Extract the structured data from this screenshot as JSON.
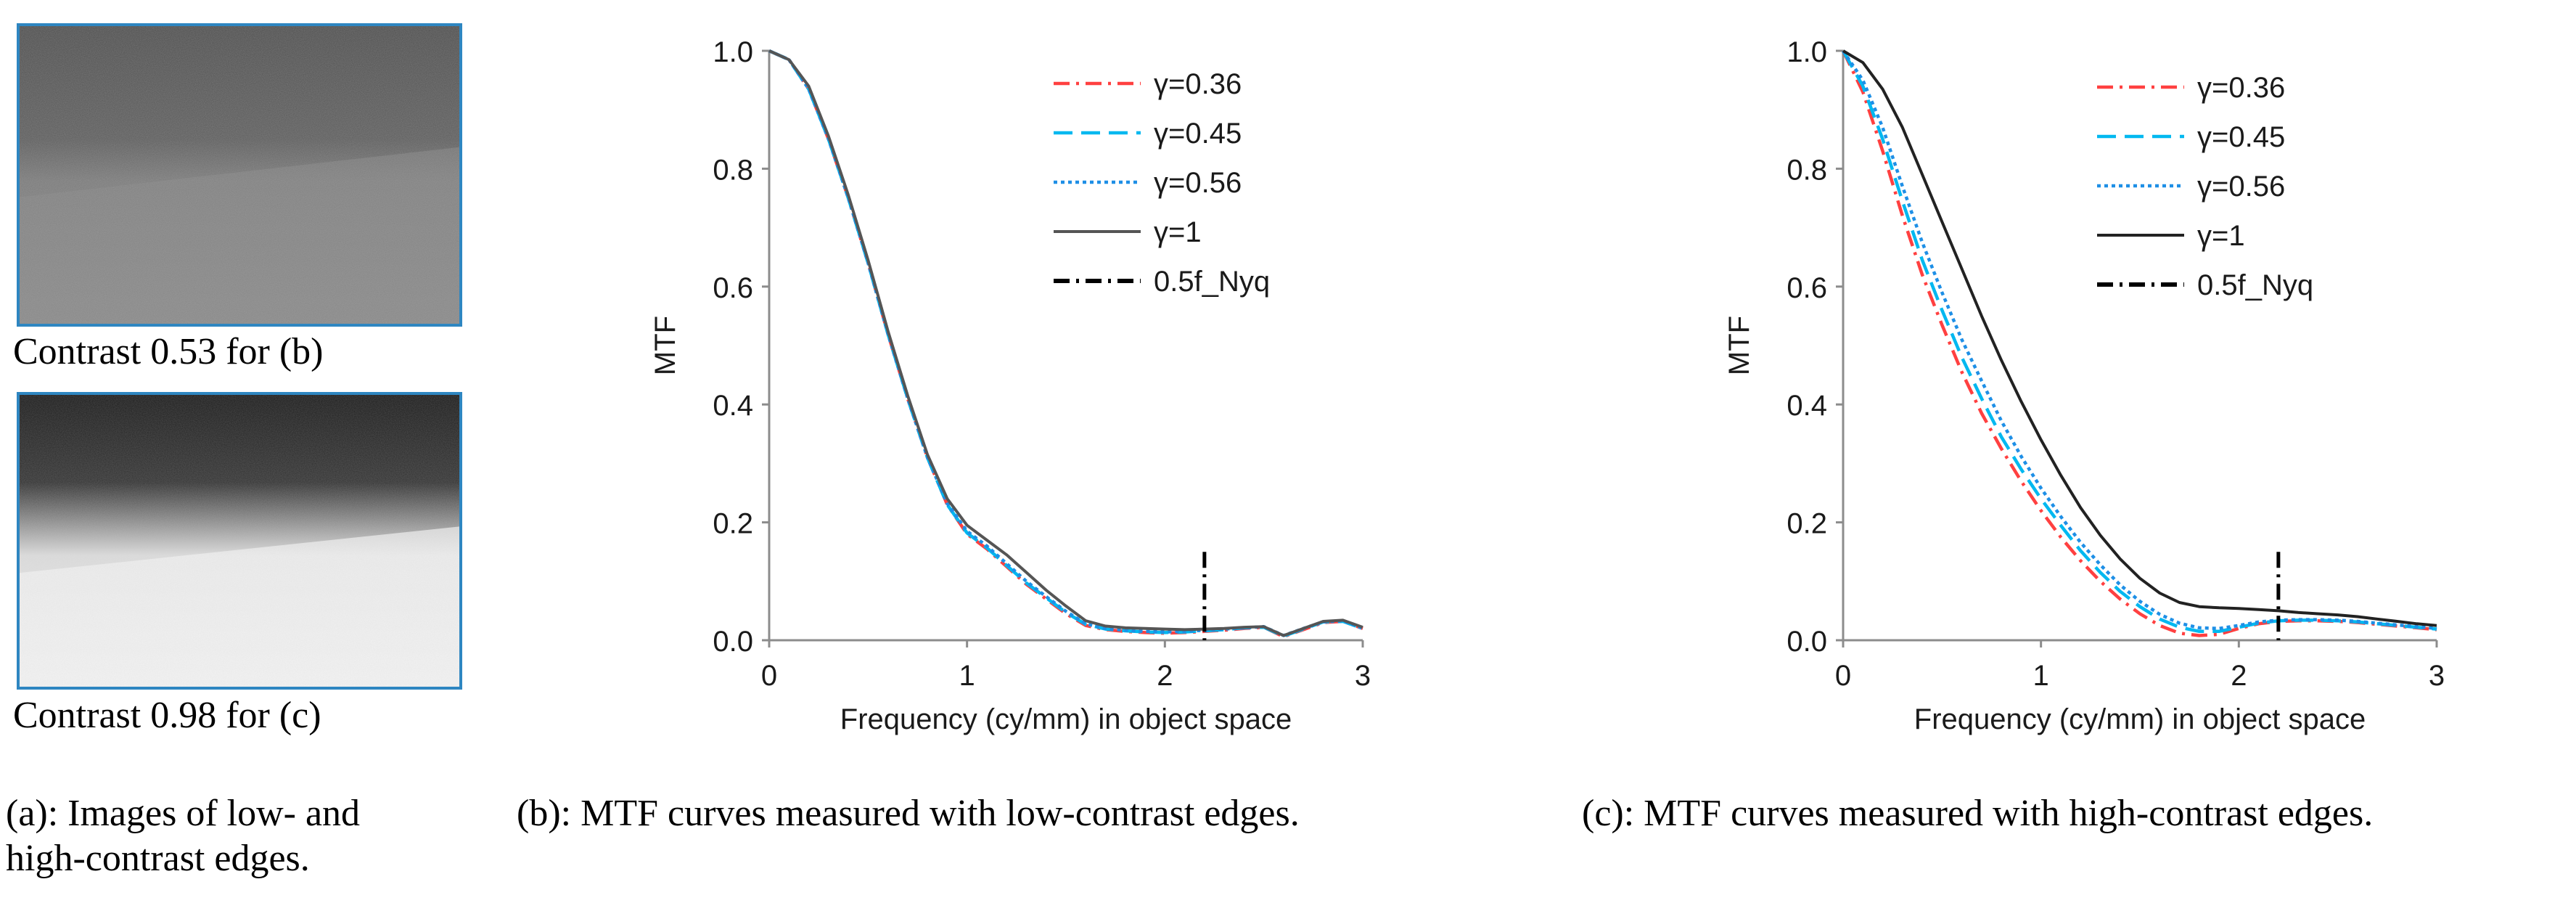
{
  "panel_a": {
    "low_contrast_label": "Contrast 0.53 for (b)",
    "high_contrast_label": "Contrast 0.98 for (c)",
    "caption_line1": "(a): Images of low- and",
    "caption_line2": "high-contrast edges."
  },
  "colors": {
    "gamma_036": "#ff4040",
    "gamma_045": "#00b8f0",
    "gamma_056": "#1e8fe6",
    "gamma_1_low": "#555555",
    "gamma_1_high": "#222222",
    "nyquist_marker": "#000000",
    "thumb_border": "#2e86c1"
  },
  "chart_data": [
    {
      "id": "b",
      "type": "line",
      "caption": "(b): MTF curves measured with low-contrast edges.",
      "xlabel": "Frequency (cy/mm) in object space",
      "ylabel": "MTF",
      "xlim": [
        0,
        3
      ],
      "ylim": [
        0,
        1
      ],
      "xticks": [
        "0",
        "1",
        "2",
        "3"
      ],
      "yticks": [
        "0.0",
        "0.2",
        "0.4",
        "0.6",
        "0.8",
        "1.0"
      ],
      "grid": false,
      "legend_position": "top-right",
      "series": [
        {
          "name": "γ=0.36",
          "style": "dashdot",
          "color_key": "gamma_036",
          "x": [
            0,
            0.1,
            0.2,
            0.3,
            0.4,
            0.5,
            0.6,
            0.7,
            0.8,
            0.9,
            1.0,
            1.1,
            1.2,
            1.3,
            1.4,
            1.5,
            1.6,
            1.7,
            1.8,
            1.9,
            2.0,
            2.1,
            2.2,
            2.3,
            2.4,
            2.5,
            2.6,
            2.7,
            2.8,
            2.9,
            3.0
          ],
          "y": [
            1.0,
            0.985,
            0.935,
            0.85,
            0.75,
            0.64,
            0.52,
            0.41,
            0.31,
            0.23,
            0.18,
            0.155,
            0.125,
            0.095,
            0.07,
            0.045,
            0.025,
            0.018,
            0.015,
            0.013,
            0.012,
            0.013,
            0.015,
            0.017,
            0.02,
            0.022,
            0.006,
            0.018,
            0.03,
            0.032,
            0.02
          ]
        },
        {
          "name": "γ=0.45",
          "style": "dashed",
          "color_key": "gamma_045",
          "x": [
            0,
            0.1,
            0.2,
            0.3,
            0.4,
            0.5,
            0.6,
            0.7,
            0.8,
            0.9,
            1.0,
            1.1,
            1.2,
            1.3,
            1.4,
            1.5,
            1.6,
            1.7,
            1.8,
            1.9,
            2.0,
            2.1,
            2.2,
            2.3,
            2.4,
            2.5,
            2.6,
            2.7,
            2.8,
            2.9,
            3.0
          ],
          "y": [
            1.0,
            0.985,
            0.935,
            0.85,
            0.75,
            0.64,
            0.52,
            0.41,
            0.31,
            0.23,
            0.182,
            0.157,
            0.127,
            0.097,
            0.072,
            0.047,
            0.027,
            0.019,
            0.016,
            0.014,
            0.013,
            0.014,
            0.016,
            0.018,
            0.021,
            0.022,
            0.007,
            0.019,
            0.031,
            0.032,
            0.02
          ]
        },
        {
          "name": "γ=0.56",
          "style": "dotted",
          "color_key": "gamma_056",
          "x": [
            0,
            0.1,
            0.2,
            0.3,
            0.4,
            0.5,
            0.6,
            0.7,
            0.8,
            0.9,
            1.0,
            1.1,
            1.2,
            1.3,
            1.4,
            1.5,
            1.6,
            1.7,
            1.8,
            1.9,
            2.0,
            2.1,
            2.2,
            2.3,
            2.4,
            2.5,
            2.6,
            2.7,
            2.8,
            2.9,
            3.0
          ],
          "y": [
            1.0,
            0.985,
            0.935,
            0.85,
            0.75,
            0.64,
            0.52,
            0.41,
            0.31,
            0.232,
            0.185,
            0.16,
            0.13,
            0.1,
            0.074,
            0.049,
            0.028,
            0.02,
            0.017,
            0.015,
            0.014,
            0.015,
            0.017,
            0.019,
            0.021,
            0.023,
            0.008,
            0.02,
            0.031,
            0.033,
            0.02
          ]
        },
        {
          "name": "γ=1",
          "style": "solid",
          "color_key": "gamma_1_low",
          "x": [
            0,
            0.1,
            0.2,
            0.3,
            0.4,
            0.5,
            0.6,
            0.7,
            0.8,
            0.9,
            1.0,
            1.1,
            1.2,
            1.3,
            1.4,
            1.5,
            1.6,
            1.7,
            1.8,
            1.9,
            2.0,
            2.1,
            2.2,
            2.3,
            2.4,
            2.5,
            2.6,
            2.7,
            2.8,
            2.9,
            3.0
          ],
          "y": [
            1.0,
            0.985,
            0.94,
            0.855,
            0.755,
            0.645,
            0.525,
            0.415,
            0.315,
            0.24,
            0.195,
            0.17,
            0.145,
            0.115,
            0.085,
            0.058,
            0.033,
            0.024,
            0.021,
            0.02,
            0.019,
            0.018,
            0.019,
            0.02,
            0.022,
            0.023,
            0.008,
            0.02,
            0.032,
            0.034,
            0.022
          ]
        }
      ],
      "nyquist_marker": {
        "name": "0.5f_Nyq",
        "x": 2.2,
        "y_top": 0.15,
        "style": "dashdot"
      }
    },
    {
      "id": "c",
      "type": "line",
      "caption": "(c): MTF curves measured with high-contrast edges.",
      "xlabel": "Frequency (cy/mm) in object space",
      "ylabel": "MTF",
      "xlim": [
        0,
        3
      ],
      "ylim": [
        0,
        1
      ],
      "xticks": [
        "0",
        "1",
        "2",
        "3"
      ],
      "yticks": [
        "0.0",
        "0.2",
        "0.4",
        "0.6",
        "0.8",
        "1.0"
      ],
      "grid": false,
      "legend_position": "top-right",
      "series": [
        {
          "name": "γ=0.36",
          "style": "dashdot",
          "color_key": "gamma_036",
          "x": [
            0,
            0.1,
            0.2,
            0.3,
            0.4,
            0.5,
            0.6,
            0.7,
            0.8,
            0.9,
            1.0,
            1.1,
            1.2,
            1.3,
            1.4,
            1.5,
            1.6,
            1.7,
            1.8,
            1.9,
            2.0,
            2.1,
            2.2,
            2.3,
            2.4,
            2.5,
            2.6,
            2.7,
            2.8,
            2.9,
            3.0
          ],
          "y": [
            1.0,
            0.93,
            0.83,
            0.72,
            0.62,
            0.535,
            0.455,
            0.385,
            0.325,
            0.27,
            0.22,
            0.175,
            0.135,
            0.1,
            0.07,
            0.045,
            0.025,
            0.012,
            0.008,
            0.01,
            0.02,
            0.028,
            0.032,
            0.033,
            0.033,
            0.032,
            0.03,
            0.027,
            0.024,
            0.021,
            0.018
          ]
        },
        {
          "name": "γ=0.45",
          "style": "dashed",
          "color_key": "gamma_045",
          "x": [
            0,
            0.1,
            0.2,
            0.3,
            0.4,
            0.5,
            0.6,
            0.7,
            0.8,
            0.9,
            1.0,
            1.1,
            1.2,
            1.3,
            1.4,
            1.5,
            1.6,
            1.7,
            1.8,
            1.9,
            2.0,
            2.1,
            2.2,
            2.3,
            2.4,
            2.5,
            2.6,
            2.7,
            2.8,
            2.9,
            3.0
          ],
          "y": [
            1.0,
            0.94,
            0.85,
            0.745,
            0.645,
            0.56,
            0.48,
            0.41,
            0.345,
            0.29,
            0.24,
            0.195,
            0.152,
            0.115,
            0.083,
            0.057,
            0.036,
            0.022,
            0.015,
            0.015,
            0.022,
            0.029,
            0.033,
            0.034,
            0.034,
            0.033,
            0.031,
            0.028,
            0.025,
            0.022,
            0.019
          ]
        },
        {
          "name": "γ=0.56",
          "style": "dotted",
          "color_key": "gamma_056",
          "x": [
            0,
            0.1,
            0.2,
            0.3,
            0.4,
            0.5,
            0.6,
            0.7,
            0.8,
            0.9,
            1.0,
            1.1,
            1.2,
            1.3,
            1.4,
            1.5,
            1.6,
            1.7,
            1.8,
            1.9,
            2.0,
            2.1,
            2.2,
            2.3,
            2.4,
            2.5,
            2.6,
            2.7,
            2.8,
            2.9,
            3.0
          ],
          "y": [
            1.0,
            0.95,
            0.87,
            0.77,
            0.675,
            0.59,
            0.51,
            0.44,
            0.372,
            0.312,
            0.258,
            0.21,
            0.166,
            0.128,
            0.094,
            0.066,
            0.044,
            0.029,
            0.021,
            0.02,
            0.025,
            0.031,
            0.034,
            0.035,
            0.035,
            0.034,
            0.032,
            0.029,
            0.026,
            0.023,
            0.02
          ]
        },
        {
          "name": "γ=1",
          "style": "solid",
          "color_key": "gamma_1_high",
          "x": [
            0,
            0.1,
            0.2,
            0.3,
            0.4,
            0.5,
            0.6,
            0.7,
            0.8,
            0.9,
            1.0,
            1.1,
            1.2,
            1.3,
            1.4,
            1.5,
            1.6,
            1.7,
            1.8,
            1.9,
            2.0,
            2.1,
            2.2,
            2.3,
            2.4,
            2.5,
            2.6,
            2.7,
            2.8,
            2.9,
            3.0
          ],
          "y": [
            1.0,
            0.98,
            0.935,
            0.87,
            0.79,
            0.71,
            0.63,
            0.55,
            0.475,
            0.405,
            0.34,
            0.28,
            0.225,
            0.178,
            0.138,
            0.105,
            0.08,
            0.064,
            0.057,
            0.055,
            0.054,
            0.052,
            0.05,
            0.047,
            0.045,
            0.043,
            0.04,
            0.036,
            0.032,
            0.028,
            0.025
          ]
        }
      ],
      "nyquist_marker": {
        "name": "0.5f_Nyq",
        "x": 2.2,
        "y_top": 0.15,
        "style": "dashdot"
      }
    }
  ]
}
